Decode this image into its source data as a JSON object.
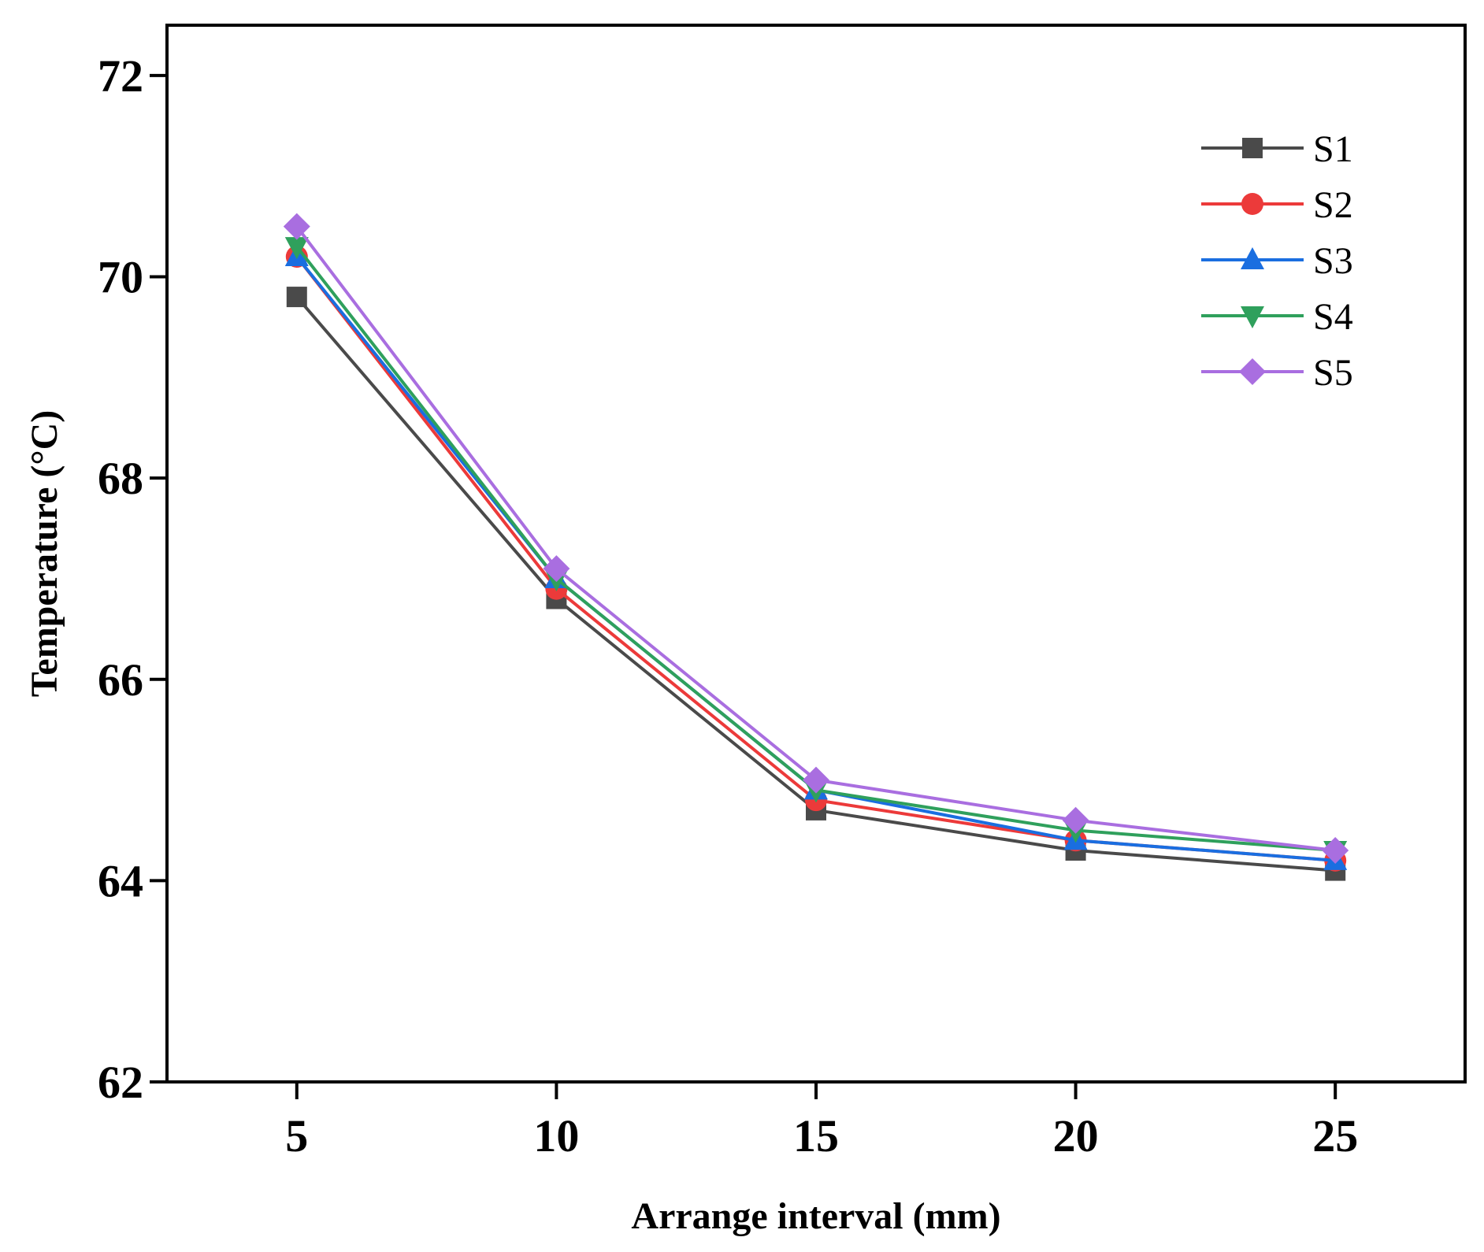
{
  "chart_data": {
    "type": "line",
    "title": "",
    "xlabel": "Arrange interval (mm)",
    "ylabel": "Temperature (°C)",
    "x": [
      5,
      10,
      15,
      20,
      25
    ],
    "xlim": [
      2.5,
      27.5
    ],
    "ylim": [
      62,
      72.5
    ],
    "xticks": [
      "5",
      "10",
      "15",
      "20",
      "25"
    ],
    "yticks": [
      "62",
      "64",
      "66",
      "68",
      "70",
      "72"
    ],
    "legend_position": "top-right",
    "series": [
      {
        "name": "S1",
        "marker": "square",
        "color": "#4a4a4a",
        "values": [
          69.8,
          66.8,
          64.7,
          64.3,
          64.1
        ]
      },
      {
        "name": "S2",
        "marker": "circle",
        "color": "#ec3a3a",
        "values": [
          70.2,
          66.9,
          64.8,
          64.4,
          64.2
        ]
      },
      {
        "name": "S3",
        "marker": "triangle-up",
        "color": "#1a6ee0",
        "values": [
          70.2,
          67.0,
          64.9,
          64.4,
          64.2
        ]
      },
      {
        "name": "S4",
        "marker": "triangle-down",
        "color": "#2fa05c",
        "values": [
          70.3,
          67.0,
          64.9,
          64.5,
          64.3
        ]
      },
      {
        "name": "S5",
        "marker": "diamond",
        "color": "#a96ee0",
        "values": [
          70.5,
          67.1,
          65.0,
          64.6,
          64.3
        ]
      }
    ]
  }
}
